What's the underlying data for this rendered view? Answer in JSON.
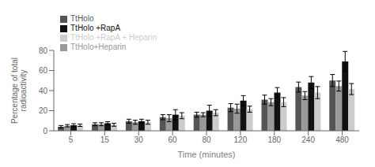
{
  "chart_data": {
    "type": "bar",
    "categories": [
      5,
      15,
      30,
      60,
      80,
      120,
      180,
      240,
      480
    ],
    "series": [
      {
        "name": "TtHolo",
        "color": "#555555",
        "values": [
          4.0,
          6.5,
          9.5,
          13.5,
          16.0,
          23.0,
          31.0,
          43.5,
          50.0
        ],
        "errors": [
          1.2,
          1.5,
          2.0,
          2.5,
          2.5,
          4.0,
          4.5,
          5.0,
          6.0
        ]
      },
      {
        "name": "TtHolo+Heparin",
        "color": "#999999",
        "values": [
          5.0,
          6.5,
          8.5,
          12.5,
          16.0,
          22.0,
          28.5,
          35.0,
          44.5
        ],
        "errors": [
          1.2,
          1.5,
          2.0,
          3.5,
          2.0,
          4.5,
          3.5,
          4.0,
          5.0
        ]
      },
      {
        "name": "TtHolo +RapA",
        "color": "#111111",
        "values": [
          5.5,
          7.5,
          9.5,
          16.0,
          20.0,
          30.0,
          38.0,
          48.0,
          69.0
        ],
        "errors": [
          1.5,
          1.5,
          2.0,
          5.0,
          5.5,
          5.0,
          5.0,
          6.0,
          10.0
        ]
      },
      {
        "name": "TtHolo +RapA + Heparin",
        "color": "#cccccc",
        "values": [
          5.5,
          6.0,
          8.5,
          15.0,
          18.0,
          21.5,
          28.5,
          38.0,
          41.5
        ],
        "errors": [
          1.2,
          1.5,
          2.0,
          3.0,
          3.0,
          3.0,
          4.5,
          6.0,
          5.5
        ]
      }
    ],
    "xlabel": "Time (minutes)",
    "ylabel": "Percentage of total\nradioactivity",
    "ylim": [
      0,
      80
    ],
    "yticks": [
      0,
      20,
      40,
      60,
      80
    ],
    "legend": "upper left",
    "grid": false
  }
}
